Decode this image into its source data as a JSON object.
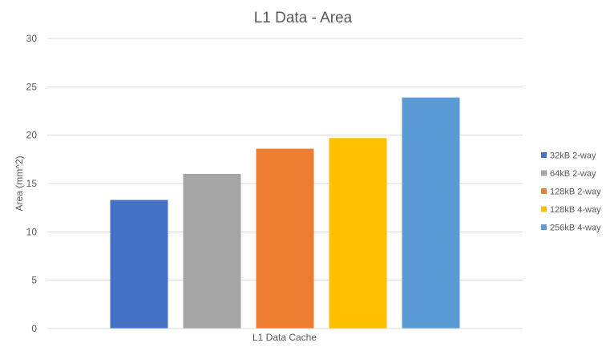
{
  "chart_data": {
    "type": "bar",
    "title": "L1 Data - Area",
    "xlabel": "",
    "ylabel": "Area (mm^2)",
    "categories": [
      "L1 Data Cache"
    ],
    "ylim": [
      0,
      30
    ],
    "yticks": [
      0,
      5,
      10,
      15,
      20,
      25,
      30
    ],
    "grid": true,
    "legend_position": "right",
    "series": [
      {
        "name": "32kB 2-way",
        "values": [
          13.3
        ],
        "color": "#4472C4"
      },
      {
        "name": "64kB 2-way",
        "values": [
          16.0
        ],
        "color": "#A5A5A5"
      },
      {
        "name": "128kB 2-way",
        "values": [
          18.6
        ],
        "color": "#ED7D31"
      },
      {
        "name": "128kB 4-way",
        "values": [
          19.7
        ],
        "color": "#FFC000"
      },
      {
        "name": "256kB 4-way",
        "values": [
          23.9
        ],
        "color": "#5B9BD5"
      }
    ]
  }
}
